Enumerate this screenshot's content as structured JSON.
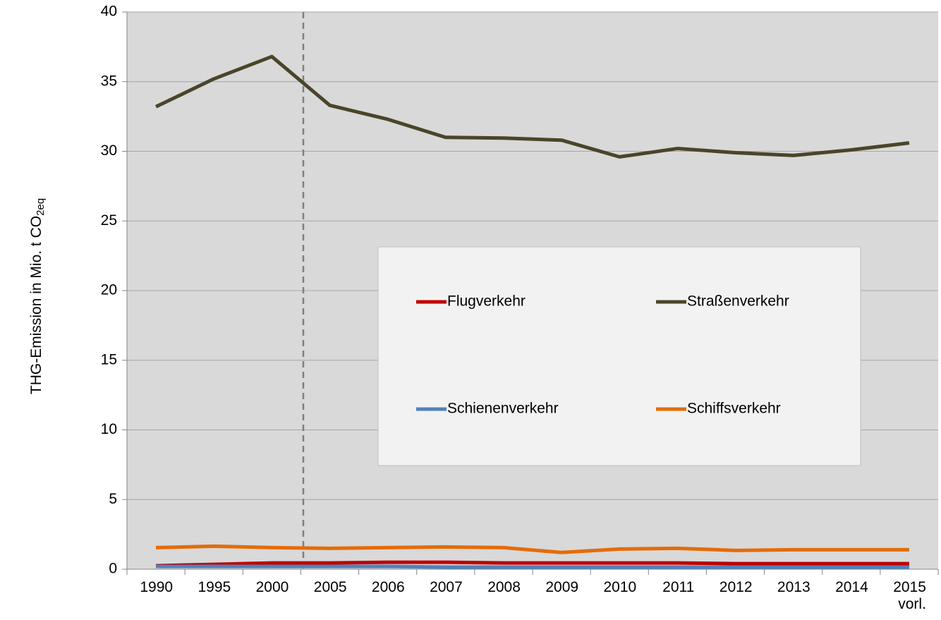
{
  "chart_data": {
    "type": "line",
    "ylabel": "THG-Emission in Mio. t CO",
    "ylabel_sub": "2eq",
    "categories": [
      "1990",
      "1995",
      "2000",
      "2005",
      "2006",
      "2007",
      "2008",
      "2009",
      "2010",
      "2011",
      "2012",
      "2013",
      "2014",
      "2015 vorl."
    ],
    "series": [
      {
        "name": "Flugverkehr",
        "color": "#c00000",
        "values": [
          0.25,
          0.35,
          0.45,
          0.45,
          0.5,
          0.5,
          0.45,
          0.45,
          0.45,
          0.45,
          0.4,
          0.4,
          0.4,
          0.4
        ]
      },
      {
        "name": "Straßenverkehr",
        "color": "#4a452a",
        "values": [
          33.2,
          35.2,
          36.8,
          33.3,
          32.3,
          31.0,
          30.95,
          30.8,
          29.6,
          30.2,
          29.9,
          29.7,
          30.1,
          30.6
        ]
      },
      {
        "name": "Schienenverkehr",
        "color": "#4f81bd",
        "values": [
          0.2,
          0.2,
          0.2,
          0.2,
          0.2,
          0.15,
          0.15,
          0.15,
          0.15,
          0.15,
          0.15,
          0.15,
          0.15,
          0.15
        ]
      },
      {
        "name": "Schiffsverkehr",
        "color": "#e46c0a",
        "values": [
          1.55,
          1.65,
          1.55,
          1.5,
          1.55,
          1.6,
          1.55,
          1.2,
          1.45,
          1.5,
          1.35,
          1.4,
          1.4,
          1.4
        ]
      }
    ],
    "ylim": [
      0,
      40
    ],
    "yticks": [
      0,
      5,
      10,
      15,
      20,
      25,
      30,
      35,
      40
    ],
    "grid": true
  }
}
